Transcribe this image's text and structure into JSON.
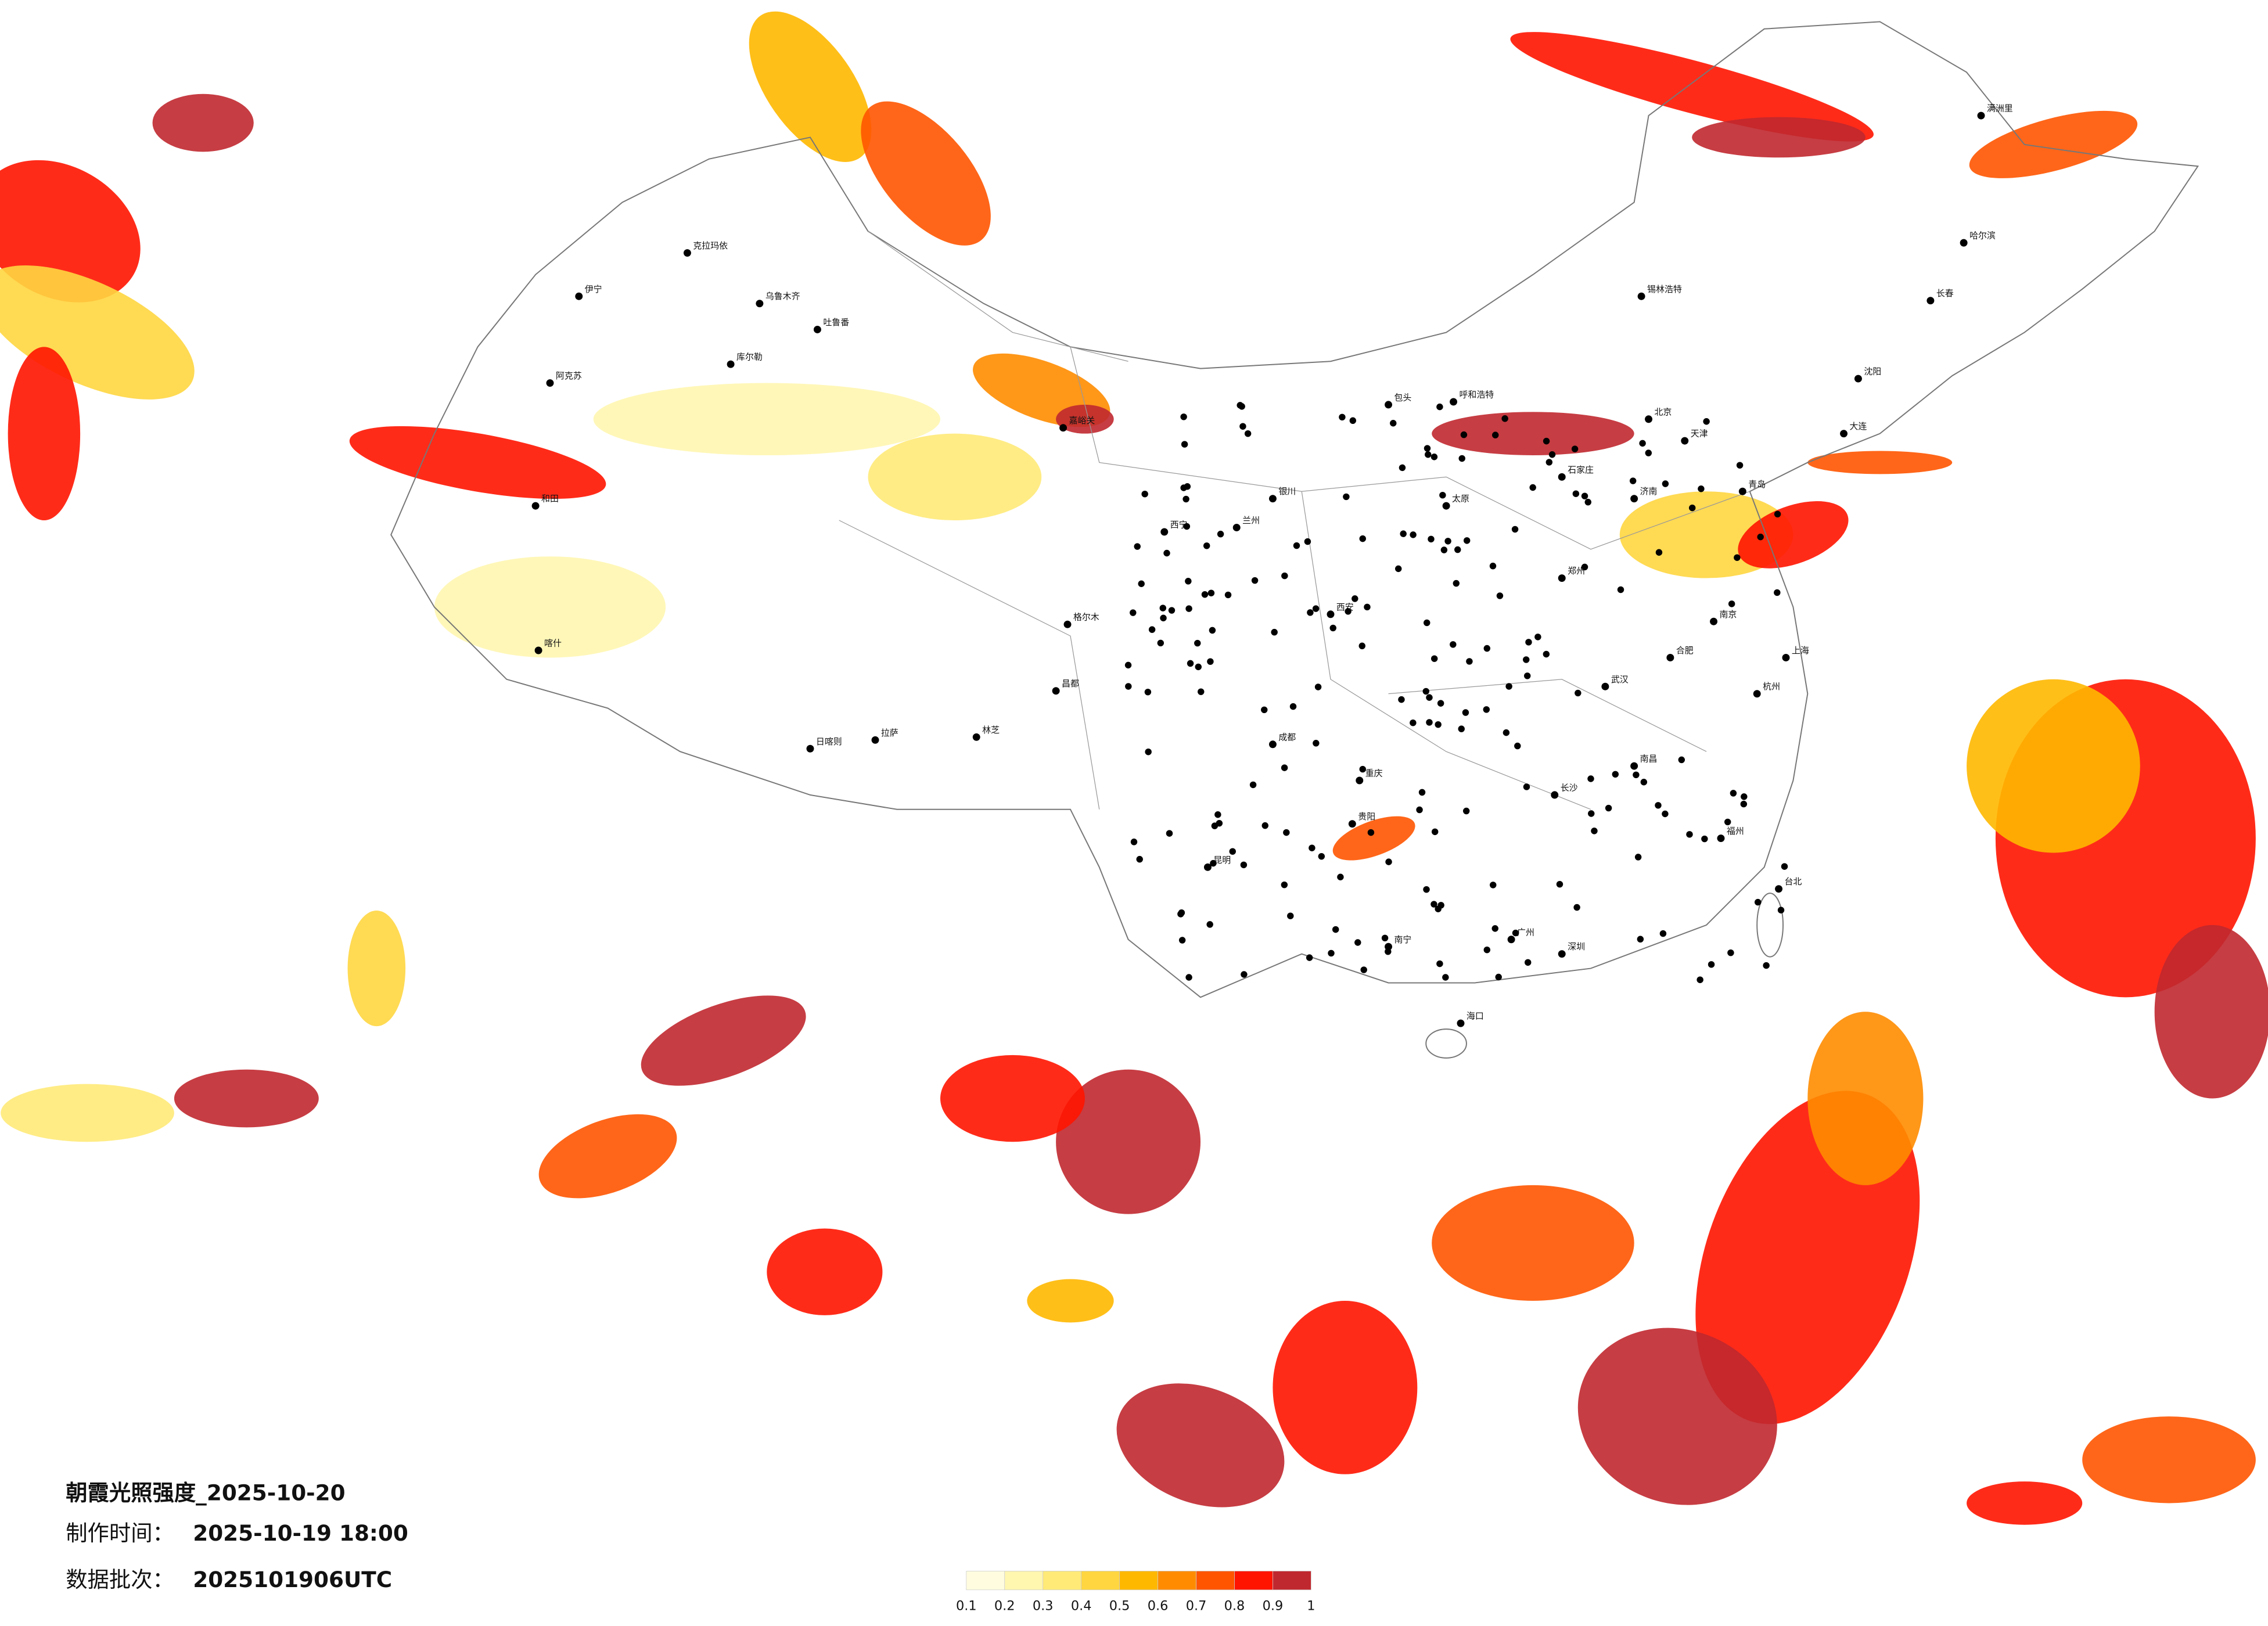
{
  "map": {
    "title": "朝霞光照强度_2025-10-20",
    "made_label": "制作时间：",
    "made_time": "2025-10-19 18:00",
    "batch_label": "数据批次：",
    "batch": "2025101906UTC",
    "cities": [
      "克拉玛依",
      "乌鲁木齐",
      "吐鲁番",
      "库尔勒",
      "阿克苏",
      "和田",
      "喀什",
      "伊宁",
      "嘉峪关",
      "西宁",
      "拉萨",
      "日喀则",
      "林芝",
      "昌都",
      "格尔木",
      "兰州",
      "银川",
      "呼和浩特",
      "包头",
      "北京",
      "天津",
      "石家庄",
      "太原",
      "济南",
      "青岛",
      "郑州",
      "西安",
      "成都",
      "重庆",
      "贵阳",
      "昆明",
      "南宁",
      "广州",
      "深圳",
      "长沙",
      "武汉",
      "南昌",
      "杭州",
      "上海",
      "南京",
      "合肥",
      "福州",
      "台北",
      "海口",
      "沈阳",
      "长春",
      "哈尔滨",
      "大连",
      "锡林浩特",
      "满洲里"
    ]
  },
  "legend": {
    "ticks": [
      0.1,
      0.2,
      0.3,
      0.4,
      0.5,
      0.6,
      0.7,
      0.8,
      0.9,
      1
    ],
    "colors": [
      "#fffce0",
      "#fff6b0",
      "#ffea78",
      "#ffd640",
      "#ffb800",
      "#ff8c00",
      "#ff5500",
      "#ff1400",
      "#c0282f"
    ]
  }
}
